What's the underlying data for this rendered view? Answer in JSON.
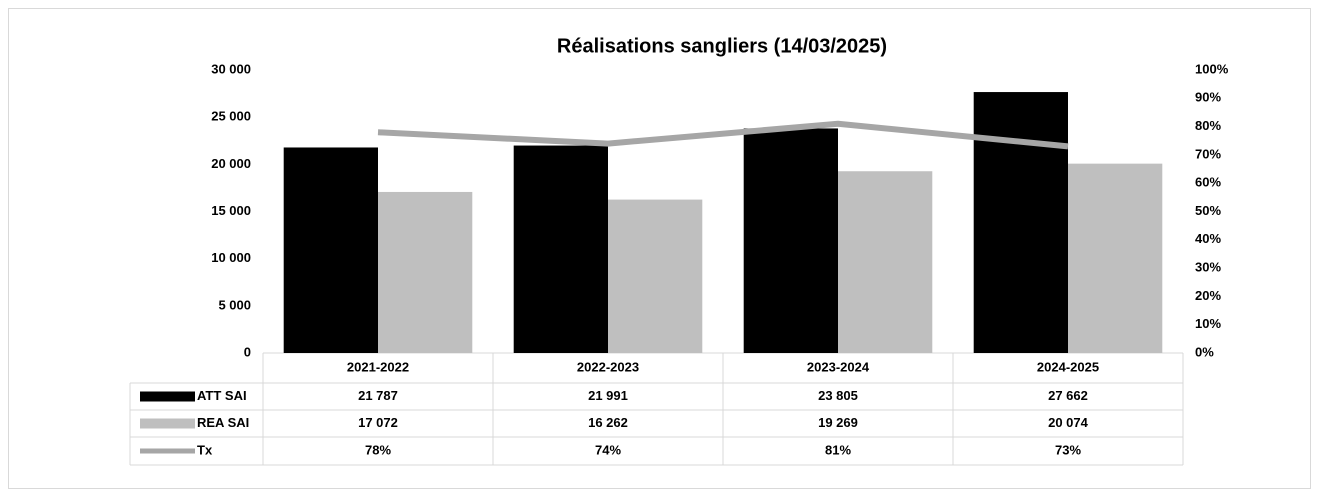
{
  "chart_data": {
    "type": "bar",
    "title": "Réalisations sangliers (14/03/2025)",
    "categories": [
      "2021-2022",
      "2022-2023",
      "2023-2024",
      "2024-2025"
    ],
    "series": [
      {
        "name": "ATT SAI",
        "color": "#000000",
        "values": [
          21787,
          21991,
          23805,
          27662
        ],
        "value_labels": [
          "21 787",
          "21 991",
          "23 805",
          "27 662"
        ]
      },
      {
        "name": "REA SAI",
        "color": "#bfbfbf",
        "values": [
          17072,
          16262,
          19269,
          20074
        ],
        "value_labels": [
          "17 072",
          "16 262",
          "19 269",
          "20 074"
        ]
      },
      {
        "name": "Tx",
        "color": "#a6a6a6",
        "type": "line",
        "axis": "y2",
        "values": [
          78,
          74,
          81,
          73
        ],
        "value_labels": [
          "78%",
          "74%",
          "81%",
          "73%"
        ]
      }
    ],
    "ylim": [
      0,
      30000
    ],
    "yticks": [
      0,
      {
        "value": 5000,
        "label": "5 000"
      },
      {
        "value": 10000,
        "label": "10 000"
      },
      {
        "value": 15000,
        "label": "15 000"
      },
      {
        "value": 20000,
        "label": "20 000"
      },
      {
        "value": 25000,
        "label": "25 000"
      },
      {
        "value": 30000,
        "label": "30 000"
      }
    ],
    "y2lim": [
      0,
      100
    ],
    "y2ticks": [
      {
        "value": 0,
        "label": "0%"
      },
      {
        "value": 10,
        "label": "10%"
      },
      {
        "value": 20,
        "label": "20%"
      },
      {
        "value": 30,
        "label": "30%"
      },
      {
        "value": 40,
        "label": "40%"
      },
      {
        "value": 50,
        "label": "50%"
      },
      {
        "value": 60,
        "label": "60%"
      },
      {
        "value": 70,
        "label": "70%"
      },
      {
        "value": 80,
        "label": "80%"
      },
      {
        "value": 90,
        "label": "90%"
      },
      {
        "value": 100,
        "label": "100%"
      }
    ],
    "grid": false
  }
}
